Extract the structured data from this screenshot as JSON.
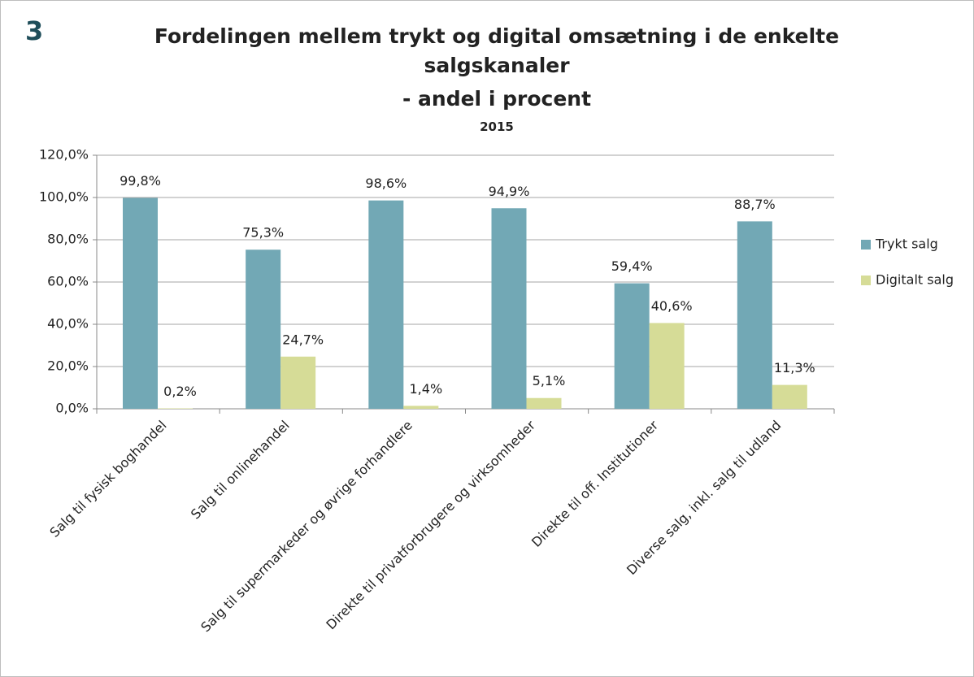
{
  "chart_data": {
    "type": "bar",
    "figure_number": "3",
    "title": "Fordelingen mellem trykt og digital omsætning i de enkelte salgskanaler",
    "subtitle": "- andel i procent",
    "year": "2015",
    "categories": [
      "Salg til fysisk boghandel",
      "Salg til onlinehandel",
      "Salg til supermarkeder og øvrige forhandlere",
      "Direkte til privatforbrugere og virksomheder",
      "Direkte til off. Institutioner",
      "Diverse salg, inkl. salg til udland"
    ],
    "series": [
      {
        "name": "Trykt salg",
        "color": "#72a8b5",
        "values": [
          99.8,
          75.3,
          98.6,
          94.9,
          59.4,
          88.7
        ],
        "value_labels": [
          "99,8%",
          "75,3%",
          "98,6%",
          "94,9%",
          "59,4%",
          "88,7%"
        ]
      },
      {
        "name": "Digitalt salg",
        "color": "#d6dc97",
        "values": [
          0.2,
          24.7,
          1.4,
          5.1,
          40.6,
          11.3
        ],
        "value_labels": [
          "0,2%",
          "24,7%",
          "1,4%",
          "5,1%",
          "40,6%",
          "11,3%"
        ]
      }
    ],
    "ylim": [
      0,
      120
    ],
    "yticks": [
      {
        "value": 0,
        "label": "0,0%"
      },
      {
        "value": 20,
        "label": "20,0%"
      },
      {
        "value": 40,
        "label": "40,0%"
      },
      {
        "value": 60,
        "label": "60,0%"
      },
      {
        "value": 80,
        "label": "80,0%"
      },
      {
        "value": 100,
        "label": "100,0%"
      },
      {
        "value": 120,
        "label": "120,0%"
      }
    ],
    "grid": true,
    "legend": "right"
  }
}
